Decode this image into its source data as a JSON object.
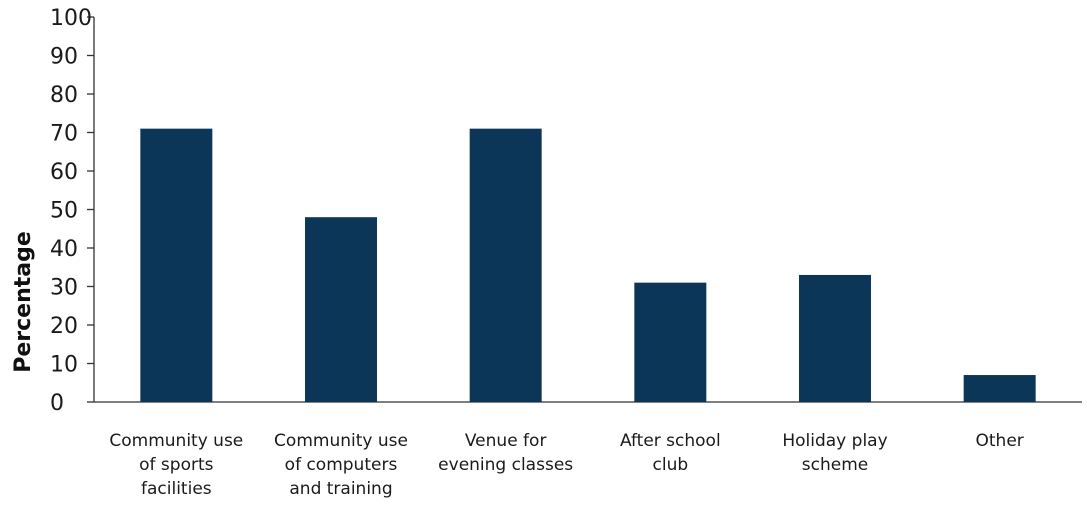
{
  "chart_data": {
    "type": "bar",
    "title": "",
    "xlabel": "",
    "ylabel": "Percentage",
    "ylim": [
      0,
      100
    ],
    "yticks": [
      "0",
      "10",
      "20",
      "30",
      "40",
      "50",
      "60",
      "70",
      "80",
      "90",
      "100"
    ],
    "grid": false,
    "categories": [
      [
        "Community use",
        "of sports",
        "facilities"
      ],
      [
        "Community use",
        "of computers",
        "and training"
      ],
      [
        "Venue for",
        "evening classes"
      ],
      [
        "After school",
        "club"
      ],
      [
        "Holiday play",
        "scheme"
      ],
      [
        "Other"
      ]
    ],
    "values": [
      71,
      48,
      71,
      31,
      33,
      7
    ],
    "bar_color": "#0b3657"
  }
}
